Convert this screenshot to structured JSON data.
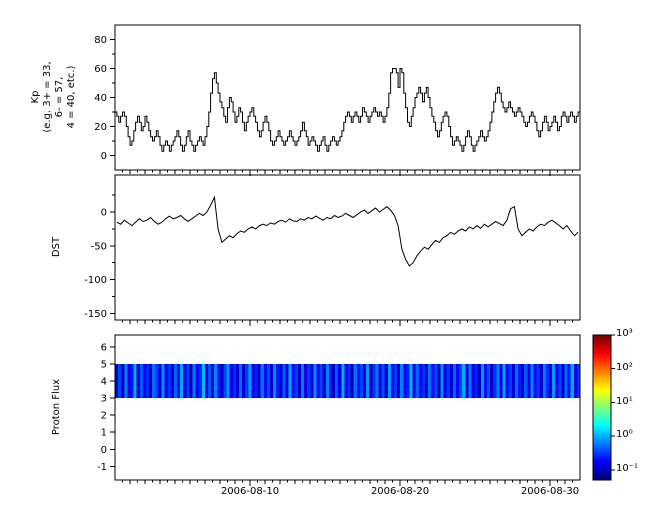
{
  "colors": {
    "line": "#000000",
    "frame": "#000000",
    "background": "#ffffff"
  },
  "x_axis": {
    "range_days": 31,
    "tick_days": [
      9,
      19,
      29
    ],
    "tick_labels": [
      "2006-08-10",
      "2006-08-20",
      "2006-08-30"
    ]
  },
  "chart_data": [
    {
      "id": "kp",
      "type": "line",
      "ylabel_lines": [
        "Kp",
        "(e.g. 3+ = 33,",
        "6- = 57,",
        "4 = 40, etc.)"
      ],
      "ylim": [
        -10,
        90
      ],
      "yticks": [
        0,
        20,
        40,
        60,
        80
      ],
      "yticks_minor": [
        10,
        30,
        50,
        70,
        90
      ],
      "samples_per_day": 8,
      "line_color": "#000000",
      "values": [
        30,
        27,
        23,
        27,
        30,
        27,
        20,
        13,
        7,
        10,
        17,
        23,
        27,
        23,
        17,
        20,
        27,
        23,
        17,
        13,
        10,
        13,
        17,
        13,
        7,
        3,
        7,
        10,
        7,
        3,
        7,
        10,
        13,
        17,
        13,
        7,
        3,
        7,
        13,
        17,
        10,
        7,
        3,
        7,
        10,
        13,
        10,
        7,
        13,
        20,
        30,
        43,
        53,
        57,
        50,
        43,
        37,
        33,
        27,
        23,
        33,
        40,
        37,
        30,
        23,
        27,
        33,
        30,
        23,
        17,
        23,
        27,
        30,
        33,
        27,
        23,
        17,
        13,
        17,
        23,
        27,
        23,
        17,
        10,
        7,
        10,
        13,
        17,
        13,
        10,
        7,
        10,
        13,
        17,
        13,
        10,
        7,
        10,
        13,
        17,
        23,
        17,
        13,
        7,
        10,
        13,
        10,
        7,
        3,
        7,
        10,
        13,
        7,
        3,
        7,
        10,
        13,
        10,
        7,
        10,
        13,
        17,
        23,
        27,
        30,
        27,
        23,
        27,
        30,
        27,
        23,
        27,
        33,
        30,
        27,
        23,
        27,
        30,
        33,
        30,
        27,
        30,
        27,
        23,
        27,
        33,
        43,
        57,
        60,
        60,
        57,
        47,
        60,
        57,
        43,
        33,
        23,
        20,
        27,
        33,
        40,
        43,
        47,
        43,
        37,
        43,
        47,
        40,
        33,
        27,
        23,
        17,
        13,
        17,
        23,
        27,
        30,
        27,
        20,
        13,
        7,
        10,
        13,
        10,
        7,
        3,
        7,
        13,
        17,
        13,
        7,
        3,
        7,
        10,
        13,
        17,
        13,
        10,
        13,
        17,
        23,
        30,
        37,
        43,
        47,
        43,
        37,
        33,
        30,
        33,
        37,
        33,
        30,
        27,
        30,
        33,
        30,
        27,
        23,
        20,
        23,
        27,
        30,
        27,
        23,
        17,
        13,
        17,
        23,
        27,
        23,
        17,
        20,
        23,
        27,
        23,
        17,
        20,
        27,
        30,
        27,
        23,
        27,
        30,
        27,
        23,
        27,
        30
      ]
    },
    {
      "id": "dst",
      "type": "line",
      "ylabel": "DST",
      "ylim": [
        -160,
        55
      ],
      "yticks": [
        0,
        -50,
        -100,
        -150
      ],
      "yticks_minor": [
        25,
        -25,
        -75,
        -125
      ],
      "samples_per_day": 4,
      "line_color": "#000000",
      "values": [
        -15,
        -18,
        -12,
        -16,
        -20,
        -15,
        -10,
        -14,
        -12,
        -8,
        -14,
        -18,
        -15,
        -10,
        -6,
        -10,
        -8,
        -5,
        -10,
        -14,
        -10,
        -6,
        -2,
        -5,
        0,
        10,
        22,
        -25,
        -45,
        -40,
        -35,
        -38,
        -32,
        -28,
        -30,
        -25,
        -22,
        -25,
        -20,
        -18,
        -20,
        -16,
        -18,
        -14,
        -12,
        -15,
        -10,
        -13,
        -14,
        -10,
        -12,
        -8,
        -10,
        -6,
        -9,
        -12,
        -8,
        -10,
        -5,
        -8,
        -6,
        -2,
        -5,
        -8,
        -4,
        0,
        3,
        -2,
        2,
        6,
        0,
        4,
        8,
        3,
        -5,
        -20,
        -55,
        -70,
        -80,
        -75,
        -65,
        -58,
        -52,
        -55,
        -48,
        -42,
        -45,
        -38,
        -35,
        -30,
        -33,
        -28,
        -25,
        -28,
        -22,
        -25,
        -20,
        -24,
        -18,
        -22,
        -18,
        -14,
        -17,
        -20,
        -12,
        5,
        8,
        -25,
        -35,
        -30,
        -25,
        -28,
        -22,
        -18,
        -20,
        -15,
        -12,
        -16,
        -20,
        -25,
        -20,
        -28,
        -35,
        -30
      ]
    },
    {
      "id": "proton_flux",
      "type": "heatmap",
      "ylabel": "Proton Flux",
      "ylim": [
        -1.8,
        6.7
      ],
      "yticks": [
        -1,
        0,
        1,
        2,
        3,
        4,
        5,
        6
      ],
      "band": [
        3,
        5
      ],
      "colormap": "jet",
      "scale": "log",
      "clim_exp": [
        -1.3,
        3
      ],
      "colorbar_ticks": [
        "10³",
        "10²",
        "10¹",
        "10⁰",
        "10⁻¹"
      ],
      "colorbar_tick_exp": [
        3,
        2,
        1,
        0,
        -1
      ],
      "values": [
        0.12,
        0.35,
        0.09,
        0.6,
        0.14,
        0.22,
        0.95,
        0.11,
        0.4,
        0.18,
        0.25,
        0.08,
        0.5,
        0.3,
        0.12,
        0.7,
        0.15,
        0.28,
        0.1,
        0.45,
        0.2,
        0.9,
        0.13,
        0.32,
        0.08,
        0.55,
        0.17,
        0.26,
        1.1,
        0.14,
        0.38,
        0.11,
        0.6,
        0.21,
        0.09,
        0.33,
        0.75,
        0.16,
        0.27,
        0.12,
        0.48,
        0.1,
        0.3,
        0.85,
        0.14,
        0.24,
        0.09,
        0.52,
        0.19,
        0.36,
        0.11,
        0.65,
        0.23,
        0.1,
        0.42,
        0.15,
        0.88,
        0.2,
        0.31,
        0.09,
        0.55,
        0.13,
        0.29,
        0.12,
        0.7,
        0.18,
        0.34,
        0.1,
        0.6,
        0.22,
        0.09,
        0.4,
        0.16,
        0.95,
        0.12,
        0.26,
        0.08,
        0.5,
        0.21,
        0.33,
        0.14,
        0.75,
        0.1,
        0.28,
        0.58,
        0.13,
        0.37,
        0.11,
        0.8,
        0.19,
        0.3,
        0.09,
        0.62,
        0.17,
        0.25,
        1.0,
        0.12,
        0.44,
        0.15,
        0.27,
        0.1,
        0.52,
        0.2,
        0.35,
        0.08,
        0.68,
        0.14,
        0.29,
        0.11,
        0.46,
        0.18,
        0.32,
        0.92,
        0.12,
        0.55,
        0.16,
        0.24,
        0.09,
        0.72,
        0.2,
        0.38,
        0.1,
        0.27,
        0.6,
        0.13,
        0.85,
        0.17,
        0.31,
        0.12,
        0.5,
        0.22,
        0.09,
        0.42,
        0.14,
        0.66,
        0.19,
        0.3,
        0.1,
        0.57,
        0.25,
        0.12,
        0.78,
        0.16,
        0.34,
        0.1,
        0.48,
        0.21,
        0.9,
        0.13,
        0.28
      ]
    }
  ]
}
